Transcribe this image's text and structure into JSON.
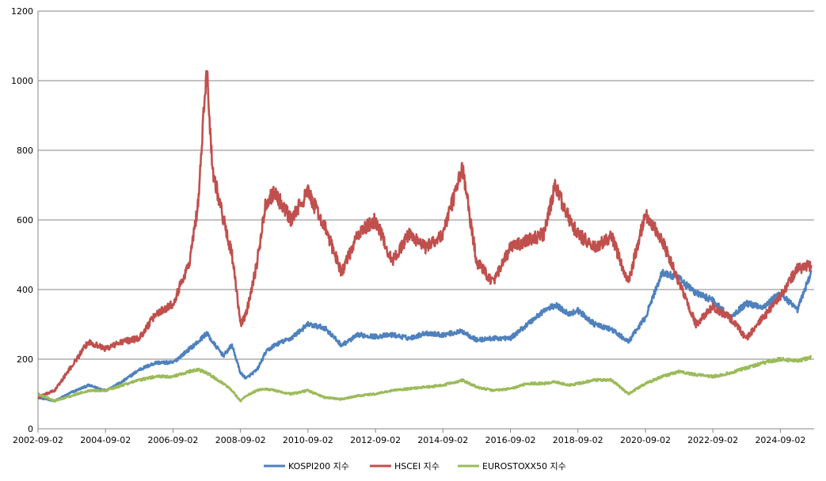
{
  "chart_data": {
    "type": "line",
    "title": "",
    "xlabel": "",
    "ylabel": "",
    "ylim": [
      0,
      1200
    ],
    "yticks": [
      0,
      200,
      400,
      600,
      800,
      1000,
      1200
    ],
    "xlim": [
      "2002-09-02",
      "2025-09-02"
    ],
    "xticks": [
      "2002-09-02",
      "2004-09-02",
      "2006-09-02",
      "2008-09-02",
      "2010-09-02",
      "2012-09-02",
      "2014-09-02",
      "2016-09-02",
      "2018-09-02",
      "2020-09-02",
      "2022-09-02",
      "2024-09-02"
    ],
    "grid": "horizontal",
    "legend": "bottom",
    "x": [
      "2002-09-02",
      "2003-03-02",
      "2003-09-02",
      "2004-03-02",
      "2004-09-02",
      "2005-03-02",
      "2005-09-02",
      "2006-03-02",
      "2006-09-02",
      "2007-03-02",
      "2007-06-02",
      "2007-09-02",
      "2007-11-02",
      "2008-03-02",
      "2008-06-02",
      "2008-09-02",
      "2008-11-02",
      "2009-03-02",
      "2009-06-02",
      "2009-09-02",
      "2010-03-02",
      "2010-09-02",
      "2011-03-02",
      "2011-09-02",
      "2012-03-02",
      "2012-09-02",
      "2013-03-02",
      "2013-09-02",
      "2014-03-02",
      "2014-09-02",
      "2015-04-02",
      "2015-09-02",
      "2016-03-02",
      "2016-09-02",
      "2017-03-02",
      "2017-09-02",
      "2018-01-02",
      "2018-06-02",
      "2018-09-02",
      "2019-03-02",
      "2019-09-02",
      "2020-03-02",
      "2020-09-02",
      "2021-03-02",
      "2021-09-02",
      "2022-03-02",
      "2022-09-02",
      "2023-03-02",
      "2023-09-02",
      "2024-03-02",
      "2024-09-02",
      "2025-03-02",
      "2025-08-02"
    ],
    "series": [
      {
        "name": "KOSPI200 지수",
        "color": "#4f81bd",
        "values": [
          90,
          80,
          105,
          125,
          110,
          135,
          170,
          190,
          190,
          230,
          250,
          275,
          250,
          210,
          240,
          160,
          145,
          170,
          220,
          240,
          260,
          300,
          290,
          240,
          270,
          265,
          270,
          260,
          275,
          270,
          280,
          255,
          260,
          260,
          300,
          340,
          355,
          330,
          340,
          300,
          285,
          250,
          320,
          450,
          430,
          390,
          370,
          320,
          360,
          350,
          390,
          340,
          450
        ]
      },
      {
        "name": "HSCEI 지수",
        "color": "#c0504d",
        "values": [
          90,
          110,
          180,
          250,
          230,
          250,
          260,
          330,
          360,
          480,
          650,
          1040,
          750,
          600,
          500,
          300,
          330,
          480,
          650,
          680,
          600,
          680,
          580,
          450,
          560,
          600,
          480,
          560,
          520,
          560,
          750,
          480,
          420,
          520,
          540,
          560,
          700,
          600,
          560,
          520,
          550,
          420,
          620,
          540,
          420,
          300,
          350,
          320,
          260,
          320,
          380,
          460,
          470
        ]
      },
      {
        "name": "EUROSTOXX50 지수",
        "color": "#9bbb59",
        "values": [
          100,
          80,
          95,
          110,
          110,
          125,
          140,
          150,
          150,
          165,
          170,
          160,
          150,
          130,
          110,
          80,
          95,
          110,
          115,
          110,
          100,
          110,
          90,
          85,
          95,
          100,
          110,
          115,
          120,
          125,
          140,
          120,
          110,
          115,
          130,
          130,
          135,
          125,
          130,
          140,
          140,
          100,
          130,
          150,
          165,
          155,
          150,
          160,
          175,
          190,
          200,
          195,
          205
        ]
      }
    ]
  }
}
